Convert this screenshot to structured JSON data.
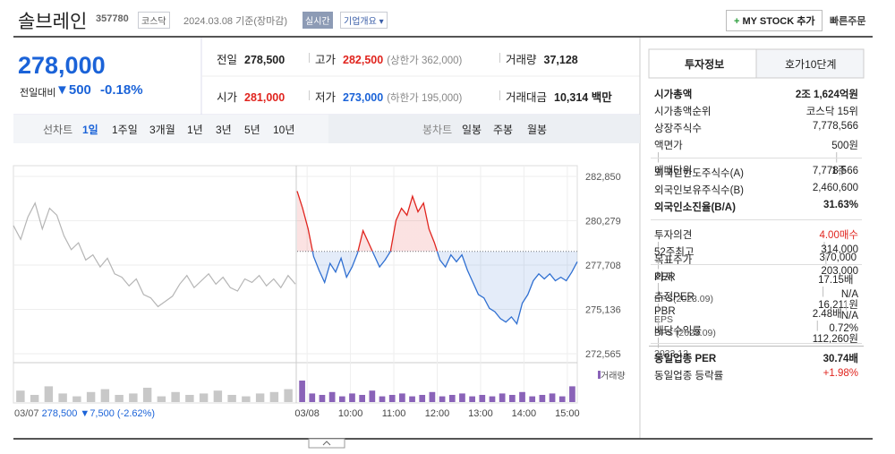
{
  "header": {
    "name": "솔브레인",
    "code": "357780",
    "market": "코스닥",
    "date": "2024.03.08",
    "basis": "기준(장마감)",
    "realtime": "실시간",
    "company_info": "기업개요",
    "my_stock": "MY STOCK 추가",
    "quick_order": "빠른주문"
  },
  "price": {
    "current": "278,000",
    "change_label": "전일대비",
    "change": "500",
    "rate": "-0.18%"
  },
  "stats": [
    [
      {
        "label": "전일",
        "value": "278,500",
        "color": "#222"
      },
      {
        "label": "고가",
        "value": "282,500",
        "note": "(상한가 362,000)",
        "color": "#e0241e"
      },
      {
        "label": "거래량",
        "value": "37,128",
        "color": "#222"
      }
    ],
    [
      {
        "label": "시가",
        "value": "281,000",
        "color": "#e0241e"
      },
      {
        "label": "저가",
        "value": "273,000",
        "note": "(하한가 195,000)",
        "color": "#1b63d8"
      },
      {
        "label": "거래대금",
        "value": "10,314 백만",
        "color": "#222"
      }
    ]
  ],
  "tabs": {
    "line_chart": "선차트",
    "periods": [
      "1일",
      "1주일",
      "3개월",
      "1년",
      "3년",
      "5년",
      "10년"
    ],
    "active": 0,
    "candle_chart": "봉차트",
    "candles": [
      "일봉",
      "주봉",
      "월봉"
    ]
  },
  "chart": {
    "type": "line",
    "prev_close": 278500,
    "ylim": [
      272046,
      283473
    ],
    "yticks": [
      {
        "value": 282850,
        "label": "282,850"
      },
      {
        "value": 280279,
        "label": "280,279"
      },
      {
        "value": 277708,
        "label": "277,708"
      },
      {
        "value": 275136,
        "label": "275,136"
      },
      {
        "value": 272565,
        "label": "272,565"
      }
    ],
    "xlim": [
      -0.23,
      6.23
    ],
    "xticks": [
      {
        "value": 0,
        "label": "03/08"
      },
      {
        "value": 1,
        "label": "10:00"
      },
      {
        "value": 2,
        "label": "11:00"
      },
      {
        "value": 3,
        "label": "12:00"
      },
      {
        "value": 4,
        "label": "13:00"
      },
      {
        "value": 5,
        "label": "14:00"
      },
      {
        "value": 6,
        "label": "15:00"
      }
    ],
    "prev_day": {
      "values": [
        280000,
        279200,
        280500,
        281300,
        279800,
        281000,
        280600,
        279400,
        278600,
        279000,
        278000,
        278300,
        277600,
        278100,
        277200,
        277000,
        276500,
        276900,
        276000,
        275800,
        275300,
        275600,
        275900,
        276600,
        277100,
        276400,
        276800,
        277200,
        276600,
        277000,
        276400,
        276200,
        276900,
        276700,
        277100,
        276500,
        276900,
        276400,
        277100,
        276600
      ],
      "color": "#b5b5b5"
    },
    "today": {
      "values": [
        282000,
        281000,
        279800,
        278200,
        277400,
        276700,
        277800,
        277300,
        278100,
        277000,
        277600,
        278400,
        279700,
        279000,
        278300,
        277600,
        278000,
        278500,
        280300,
        281000,
        280600,
        281700,
        280800,
        281300,
        279800,
        279000,
        278000,
        277600,
        278300,
        277900,
        278300,
        277400,
        276700,
        276000,
        275800,
        275200,
        275000,
        274600,
        274400,
        274700,
        274300,
        275500,
        276000,
        276800,
        277200,
        276900,
        277200,
        276800,
        277000,
        276800,
        277300,
        277900
      ],
      "up_color": "#e0241e",
      "down_color": "#2f6fd1"
    },
    "volume": {
      "legend": "거래량",
      "vlim": [
        0,
        100
      ],
      "prev_values": [
        40,
        25,
        55,
        30,
        20,
        35,
        45,
        25,
        30,
        50,
        20,
        35,
        25,
        30,
        40,
        25,
        20,
        30,
        35,
        45
      ],
      "today_values": [
        75,
        30,
        25,
        35,
        20,
        30,
        25,
        40,
        20,
        25,
        30,
        20,
        25,
        35,
        20,
        25,
        30,
        20,
        25,
        20,
        30,
        25,
        35,
        20,
        25,
        30,
        20,
        55
      ],
      "prev_color": "#c8c8c8",
      "today_color": "#8a63b8"
    },
    "prev_info": {
      "date": "03/07",
      "close": "278,500",
      "change": "7,500",
      "rate": "(-2.62%)"
    }
  },
  "invest": {
    "tabs": [
      "투자정보",
      "호가10단계"
    ],
    "groups": [
      [
        {
          "label": [
            "시가총액"
          ],
          "value": [
            "2조 1,624억원"
          ],
          "bold": true
        },
        {
          "label": [
            "시가총액순위"
          ],
          "value": [
            "코스닥 15위"
          ]
        },
        {
          "label": [
            "상장주식수"
          ],
          "value": [
            "7,778,566"
          ]
        },
        {
          "label": [
            "액면가",
            "매매단위"
          ],
          "value": [
            "500원",
            "1주"
          ]
        }
      ],
      [
        {
          "label": [
            "외국인한도주식수(A)"
          ],
          "value": [
            "7,778,566"
          ]
        },
        {
          "label": [
            "외국인보유주식수(B)"
          ],
          "value": [
            "2,460,600"
          ]
        },
        {
          "label": [
            "외국인소진율(B/A)"
          ],
          "value": [
            "31.63%"
          ],
          "bold": true
        }
      ],
      [
        {
          "label": [
            "투자의견",
            "목표주가"
          ],
          "value": [
            "4.00매수",
            "370,000"
          ],
          "color": "#e0241e"
        },
        {
          "label": [
            "52주최고",
            "최저"
          ],
          "value": [
            "314,000",
            "203,000"
          ]
        }
      ],
      [
        {
          "label": [
            "PER",
            "EPS(2023.09)"
          ],
          "value": [
            "17.15배",
            "16,211원"
          ]
        },
        {
          "label": [
            "추정PER",
            "EPS"
          ],
          "value": [
            "N/A",
            "N/A"
          ]
        },
        {
          "label": [
            "PBR",
            "BPS (2023.09)"
          ],
          "value": [
            "2.48배",
            "112,260원"
          ]
        },
        {
          "label": [
            "배당수익률",
            "2023.12"
          ],
          "value": [
            "0.72%"
          ]
        }
      ],
      [
        {
          "label": [
            "동일업종 PER"
          ],
          "value": [
            "30.74배"
          ],
          "bold": true
        },
        {
          "label": [
            "동일업종 등락률"
          ],
          "value": [
            "+1.98%"
          ],
          "color": "#e0241e"
        }
      ]
    ]
  }
}
